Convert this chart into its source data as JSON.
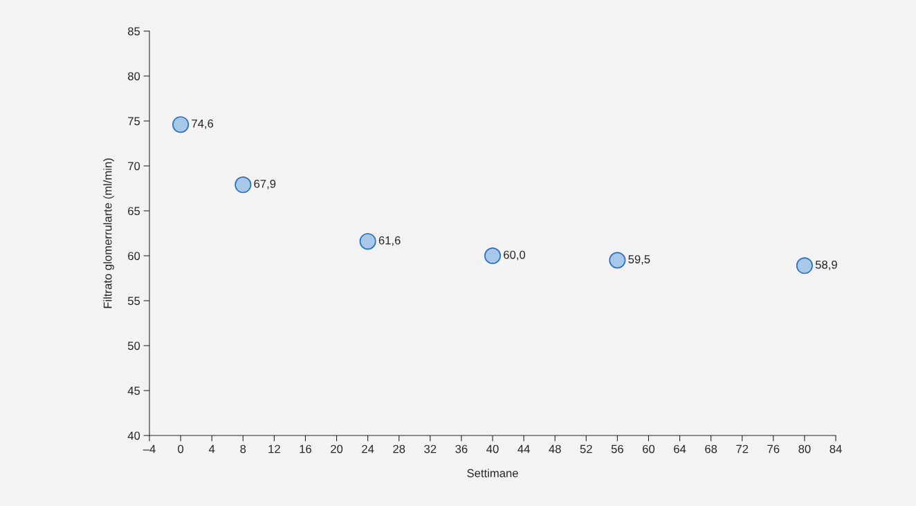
{
  "chart_data": {
    "type": "scatter",
    "xlabel": "Settimane",
    "ylabel": "Filtrato glomerrularte (ml/min)",
    "x": [
      0,
      8,
      24,
      40,
      56,
      80
    ],
    "series": [
      {
        "color": "#a8c8ea",
        "values": [
          74.6,
          67.9,
          61.6,
          60.0,
          59.5,
          58.9
        ],
        "value_labels": [
          "74,6",
          "67,9",
          "61,6",
          "60,0",
          "59,5",
          "58,9"
        ]
      }
    ],
    "xlim": [
      -4,
      84
    ],
    "xticks": [
      {
        "value": -4,
        "label": "–4"
      },
      0,
      4,
      8,
      12,
      16,
      20,
      24,
      28,
      32,
      36,
      40,
      44,
      48,
      52,
      56,
      60,
      64,
      68,
      72,
      76,
      80,
      84
    ],
    "ylim": [
      40,
      85
    ],
    "yticks": [
      40,
      45,
      50,
      55,
      60,
      65,
      70,
      75,
      80,
      85
    ],
    "marker": "circle",
    "grid": false
  }
}
